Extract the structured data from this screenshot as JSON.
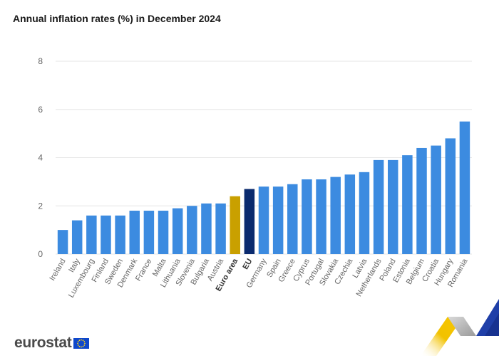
{
  "title": "Annual inflation rates (%) in December 2024",
  "logo_text": "eurostat",
  "colors": {
    "default": "#3c8be0",
    "euro_area": "#c9a000",
    "eu": "#0a2a6e",
    "grid": "#e6e6e6",
    "tick": "#666666"
  },
  "chart_data": {
    "type": "bar",
    "title": "Annual inflation rates (%) in December 2024",
    "xlabel": "",
    "ylabel": "",
    "ylim": [
      0,
      8
    ],
    "yticks": [
      0,
      2,
      4,
      6,
      8
    ],
    "grid": true,
    "categories": [
      "Ireland",
      "Italy",
      "Luxembourg",
      "Finland",
      "Sweden",
      "Denmark",
      "France",
      "Malta",
      "Lithuania",
      "Slovenia",
      "Bulgaria",
      "Austria",
      "Euro area",
      "EU",
      "Germany",
      "Spain",
      "Greece",
      "Cyprus",
      "Portugal",
      "Slovakia",
      "Czechia",
      "Latvia",
      "Netherlands",
      "Poland",
      "Estonia",
      "Belgium",
      "Croatia",
      "Hungary",
      "Romania"
    ],
    "values": [
      1.0,
      1.4,
      1.6,
      1.6,
      1.6,
      1.8,
      1.8,
      1.8,
      1.9,
      2.0,
      2.1,
      2.1,
      2.4,
      2.7,
      2.8,
      2.8,
      2.9,
      3.1,
      3.1,
      3.2,
      3.3,
      3.4,
      3.9,
      3.9,
      4.1,
      4.4,
      4.5,
      4.8,
      5.5
    ],
    "highlight": {
      "Euro area": "euro_area",
      "EU": "eu"
    },
    "bold_labels": [
      "Euro area",
      "EU"
    ]
  }
}
